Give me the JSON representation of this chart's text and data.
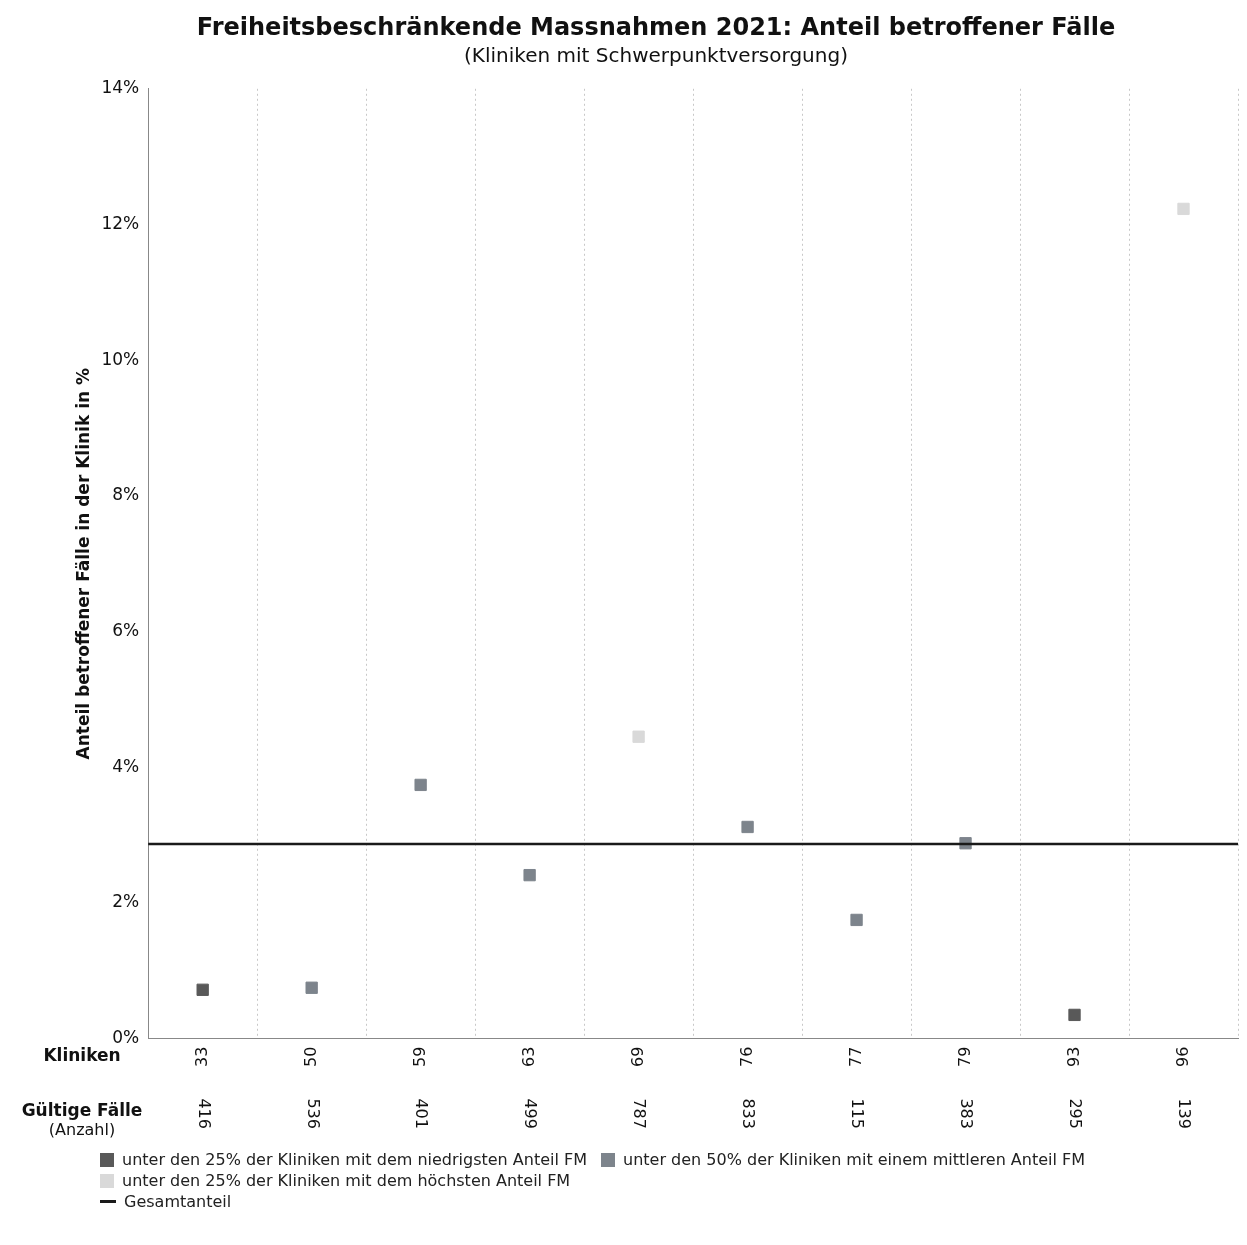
{
  "chart_data": {
    "type": "scatter",
    "title": "Freiheitsbeschränkende Massnahmen 2021: Anteil betroffener Fälle",
    "subtitle": "(Kliniken mit Schwerpunktversorgung)",
    "xlabel": "Kliniken",
    "ylabel": "Anteil betroffener Fälle in der Klinik in %",
    "categories": [
      "33",
      "50",
      "59",
      "63",
      "69",
      "76",
      "77",
      "79",
      "93",
      "96"
    ],
    "series": [
      {
        "name": "unter den 25% der Kliniken mit dem niedrigsten Anteil FM",
        "color": "#595959",
        "values": [
          0.72,
          null,
          null,
          null,
          null,
          null,
          null,
          null,
          0.35,
          null
        ]
      },
      {
        "name": "unter den 50% der Kliniken mit einem mittleren Anteil FM",
        "color": "#7d848c",
        "values": [
          null,
          0.75,
          3.74,
          2.41,
          null,
          3.12,
          1.75,
          2.88,
          null,
          null
        ]
      },
      {
        "name": "unter den 25% der Kliniken mit dem höchsten Anteil FM",
        "color": "#d9d9d9",
        "values": [
          null,
          null,
          null,
          null,
          4.45,
          null,
          null,
          null,
          null,
          12.23
        ]
      }
    ],
    "ref_lines": [
      {
        "axis": "y",
        "value": 2.87,
        "label": "Gesamtanteil",
        "color": "#1a1a1a"
      }
    ],
    "annotations": [
      "Gültige Fälle",
      "(Anzahl)",
      "416",
      "536",
      "401",
      "499",
      "787",
      "833",
      "115",
      "383",
      "295",
      "139"
    ],
    "ylim": [
      0,
      14
    ],
    "yticks": [
      {
        "value": 0,
        "label": "0%"
      },
      {
        "value": 2,
        "label": "2%"
      },
      {
        "value": 4,
        "label": "4%"
      },
      {
        "value": 6,
        "label": "6%"
      },
      {
        "value": 8,
        "label": "8%"
      },
      {
        "value": 10,
        "label": "10%"
      },
      {
        "value": 12,
        "label": "12%"
      },
      {
        "value": 14,
        "label": "14%"
      }
    ],
    "grid": "x",
    "legend": "bottom",
    "marker": "square"
  }
}
